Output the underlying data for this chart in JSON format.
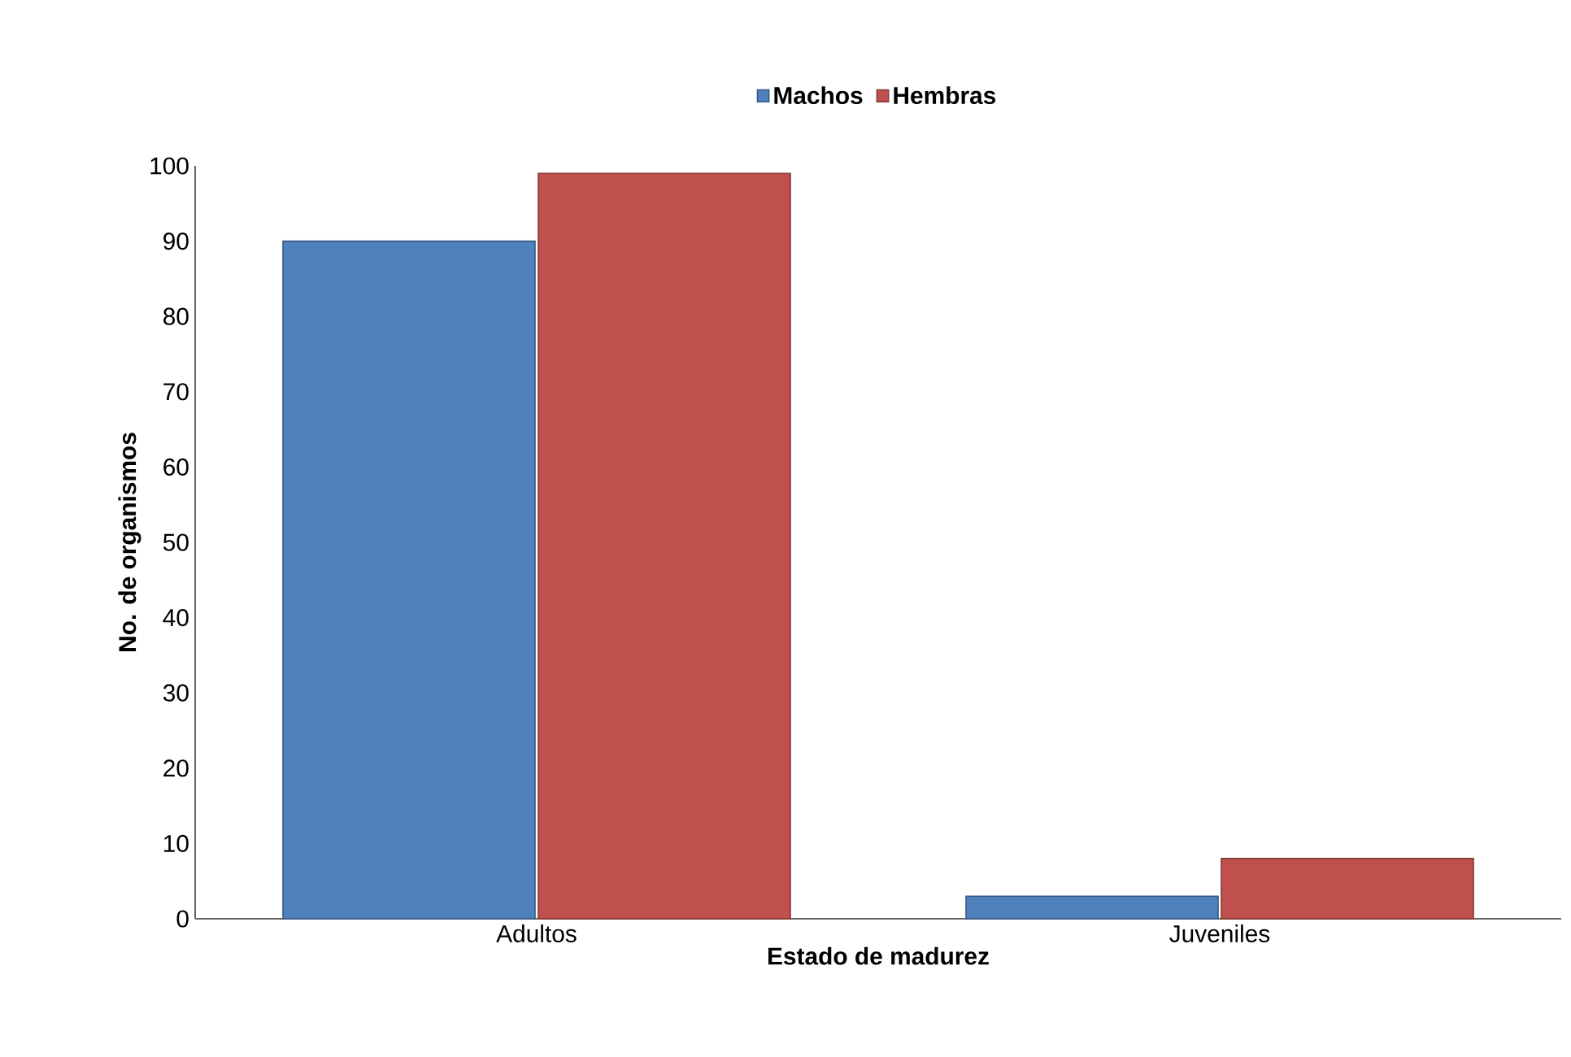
{
  "chart_data": {
    "type": "bar",
    "xlabel": "Estado de madurez",
    "ylabel": "No. de organismos",
    "categories": [
      "Adultos",
      "Juveniles"
    ],
    "series": [
      {
        "name": "Machos",
        "color": "#4f81bd",
        "values": [
          90,
          3
        ]
      },
      {
        "name": "Hembras",
        "color": "#c0504d",
        "values": [
          99,
          8
        ]
      }
    ],
    "ylim": [
      0,
      100
    ],
    "yticks": [
      0,
      10,
      20,
      30,
      40,
      50,
      60,
      70,
      80,
      90,
      100
    ],
    "grid": false,
    "legend": "top"
  }
}
